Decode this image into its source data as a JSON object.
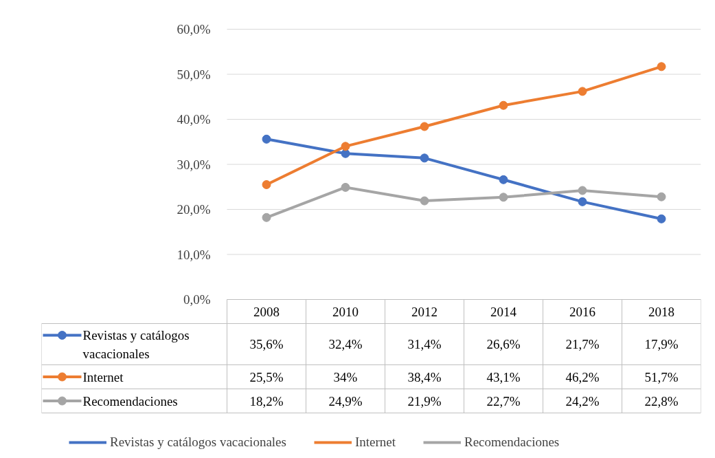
{
  "chart_data": {
    "type": "line",
    "categories": [
      "2008",
      "2010",
      "2012",
      "2014",
      "2016",
      "2018"
    ],
    "series": [
      {
        "name": "Revistas y catálogos vacacionales",
        "color": "#4472c4",
        "values": [
          35.6,
          32.4,
          31.4,
          26.6,
          21.7,
          17.9
        ],
        "value_labels": [
          "35,6%",
          "32,4%",
          "31,4%",
          "26,6%",
          "21,7%",
          "17,9%"
        ]
      },
      {
        "name": "Internet",
        "color": "#ed7d31",
        "values": [
          25.5,
          34,
          38.4,
          43.1,
          46.2,
          51.7
        ],
        "value_labels": [
          "25,5%",
          "34%",
          "38,4%",
          "43,1%",
          "46,2%",
          "51,7%"
        ]
      },
      {
        "name": "Recomendaciones",
        "color": "#a5a5a5",
        "values": [
          18.2,
          24.9,
          21.9,
          22.7,
          24.2,
          22.8
        ],
        "value_labels": [
          "18,2%",
          "24,9%",
          "21,9%",
          "22,7%",
          "24,2%",
          "22,8%"
        ]
      }
    ],
    "ylim": [
      0,
      60
    ],
    "yticks": [
      {
        "value": 0,
        "label": "0,0%"
      },
      {
        "value": 10,
        "label": "10,0%"
      },
      {
        "value": 20,
        "label": "20,0%"
      },
      {
        "value": 30,
        "label": "30,0%"
      },
      {
        "value": 40,
        "label": "40,0%"
      },
      {
        "value": 50,
        "label": "50,0%"
      },
      {
        "value": 60,
        "label": "60,0%"
      }
    ],
    "grid": "y",
    "legend": "bottom",
    "marker": "circle",
    "line_style": "solid"
  }
}
